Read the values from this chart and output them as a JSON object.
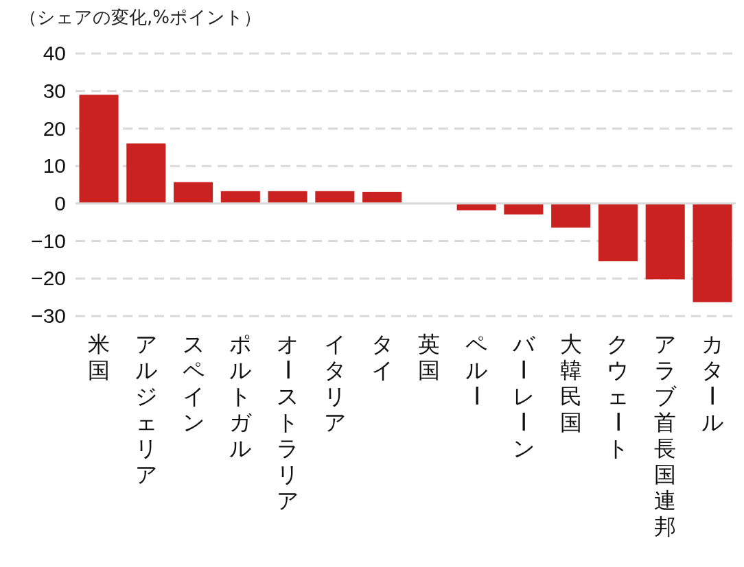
{
  "chart_data": {
    "type": "bar",
    "title": "（シェアの変化,%ポイント）",
    "categories": [
      "米国",
      "アルジェリア",
      "スペイン",
      "ポルトガル",
      "オーストラリア",
      "イタリア",
      "タイ",
      "英国",
      "ペルー",
      "バーレーン",
      "大韓民国",
      "クウェート",
      "アラブ首長国連邦",
      "カタール"
    ],
    "values": [
      29,
      16,
      5.7,
      3.3,
      3.3,
      3.3,
      3.1,
      0,
      -1.8,
      -2.9,
      -6.4,
      -15.4,
      -20.2,
      -26.3
    ],
    "color": "#c92221",
    "ylim": [
      -30,
      40
    ],
    "yticks": [
      -30,
      -20,
      -10,
      0,
      10,
      20,
      30,
      40
    ],
    "grid": "y"
  }
}
